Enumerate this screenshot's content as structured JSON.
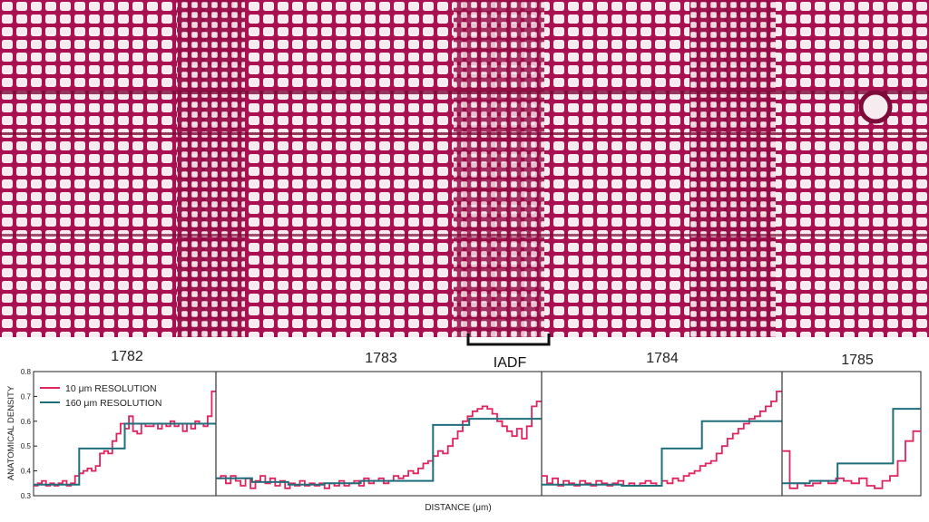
{
  "chart_data": {
    "type": "line",
    "step": true,
    "ylabel": "ANATOMICAL DENSITY",
    "xlabel": "DISTANCE (μm)",
    "ylim": [
      0.3,
      0.8
    ],
    "yticks": [
      "0.3",
      "0.4",
      "0.5",
      "0.6",
      "0.7",
      "0.8"
    ],
    "grid": false,
    "legend": {
      "position": "top-left",
      "entries": [
        {
          "label": "10 μm RESOLUTION",
          "color": "#e0245e"
        },
        {
          "label": "160 μm RESOLUTION",
          "color": "#1f6e7c"
        }
      ]
    },
    "annotation": "IADF",
    "background_image": "stained wood cross-section micrograph (magenta cell walls)",
    "colors": {
      "high_res": "#e0245e",
      "low_res": "#1f6e7c",
      "cell_wall": "#a8104f",
      "lumen": "#f6ecf0"
    },
    "panels": [
      {
        "label": "1782",
        "series": [
          {
            "name": "10 μm RESOLUTION",
            "values": [
              0.34,
              0.35,
              0.36,
              0.34,
              0.35,
              0.34,
              0.35,
              0.36,
              0.34,
              0.35,
              0.38,
              0.39,
              0.4,
              0.41,
              0.4,
              0.42,
              0.47,
              0.48,
              0.47,
              0.52,
              0.55,
              0.59,
              0.57,
              0.62,
              0.56,
              0.55,
              0.59,
              0.58,
              0.58,
              0.59,
              0.57,
              0.59,
              0.58,
              0.6,
              0.58,
              0.59,
              0.56,
              0.59,
              0.57,
              0.6,
              0.59,
              0.58,
              0.62,
              0.72
            ]
          },
          {
            "name": "160 μm RESOLUTION",
            "values": [
              0.345,
              0.49,
              0.59,
              0.59
            ]
          }
        ]
      },
      {
        "label": "1783",
        "series": [
          {
            "name": "10 μm RESOLUTION",
            "values": [
              0.37,
              0.38,
              0.35,
              0.38,
              0.36,
              0.34,
              0.37,
              0.33,
              0.36,
              0.38,
              0.35,
              0.37,
              0.34,
              0.36,
              0.33,
              0.35,
              0.34,
              0.36,
              0.34,
              0.35,
              0.34,
              0.35,
              0.33,
              0.35,
              0.34,
              0.36,
              0.34,
              0.35,
              0.36,
              0.34,
              0.37,
              0.35,
              0.36,
              0.37,
              0.35,
              0.36,
              0.38,
              0.37,
              0.38,
              0.4,
              0.39,
              0.41,
              0.43,
              0.44,
              0.46,
              0.48,
              0.47,
              0.5,
              0.53,
              0.56,
              0.6,
              0.62,
              0.64,
              0.65,
              0.66,
              0.65,
              0.63,
              0.6,
              0.58,
              0.56,
              0.54,
              0.57,
              0.53,
              0.58,
              0.66,
              0.68
            ]
          },
          {
            "name": "160 μm RESOLUTION",
            "values": [
              0.37,
              0.355,
              0.345,
              0.35,
              0.36,
              0.36,
              0.585,
              0.61,
              0.61
            ]
          }
        ]
      },
      {
        "label": "1784",
        "series": [
          {
            "name": "10 μm RESOLUTION",
            "values": [
              0.38,
              0.35,
              0.37,
              0.34,
              0.36,
              0.35,
              0.34,
              0.36,
              0.35,
              0.34,
              0.36,
              0.35,
              0.34,
              0.35,
              0.36,
              0.34,
              0.35,
              0.34,
              0.35,
              0.36,
              0.35,
              0.34,
              0.36,
              0.35,
              0.37,
              0.36,
              0.38,
              0.39,
              0.4,
              0.42,
              0.43,
              0.44,
              0.47,
              0.5,
              0.53,
              0.55,
              0.57,
              0.59,
              0.61,
              0.62,
              0.64,
              0.66,
              0.68,
              0.72
            ]
          },
          {
            "name": "160 μm RESOLUTION",
            "values": [
              0.345,
              0.345,
              0.34,
              0.49,
              0.6,
              0.6
            ]
          }
        ]
      },
      {
        "label": "1785",
        "series": [
          {
            "name": "10 μm RESOLUTION",
            "values": [
              0.48,
              0.33,
              0.35,
              0.34,
              0.35,
              0.36,
              0.35,
              0.37,
              0.36,
              0.35,
              0.37,
              0.34,
              0.33,
              0.36,
              0.38,
              0.44,
              0.52,
              0.56
            ]
          },
          {
            "name": "160 μm RESOLUTION",
            "values": [
              0.35,
              0.36,
              0.43,
              0.43,
              0.65
            ]
          }
        ]
      }
    ]
  }
}
